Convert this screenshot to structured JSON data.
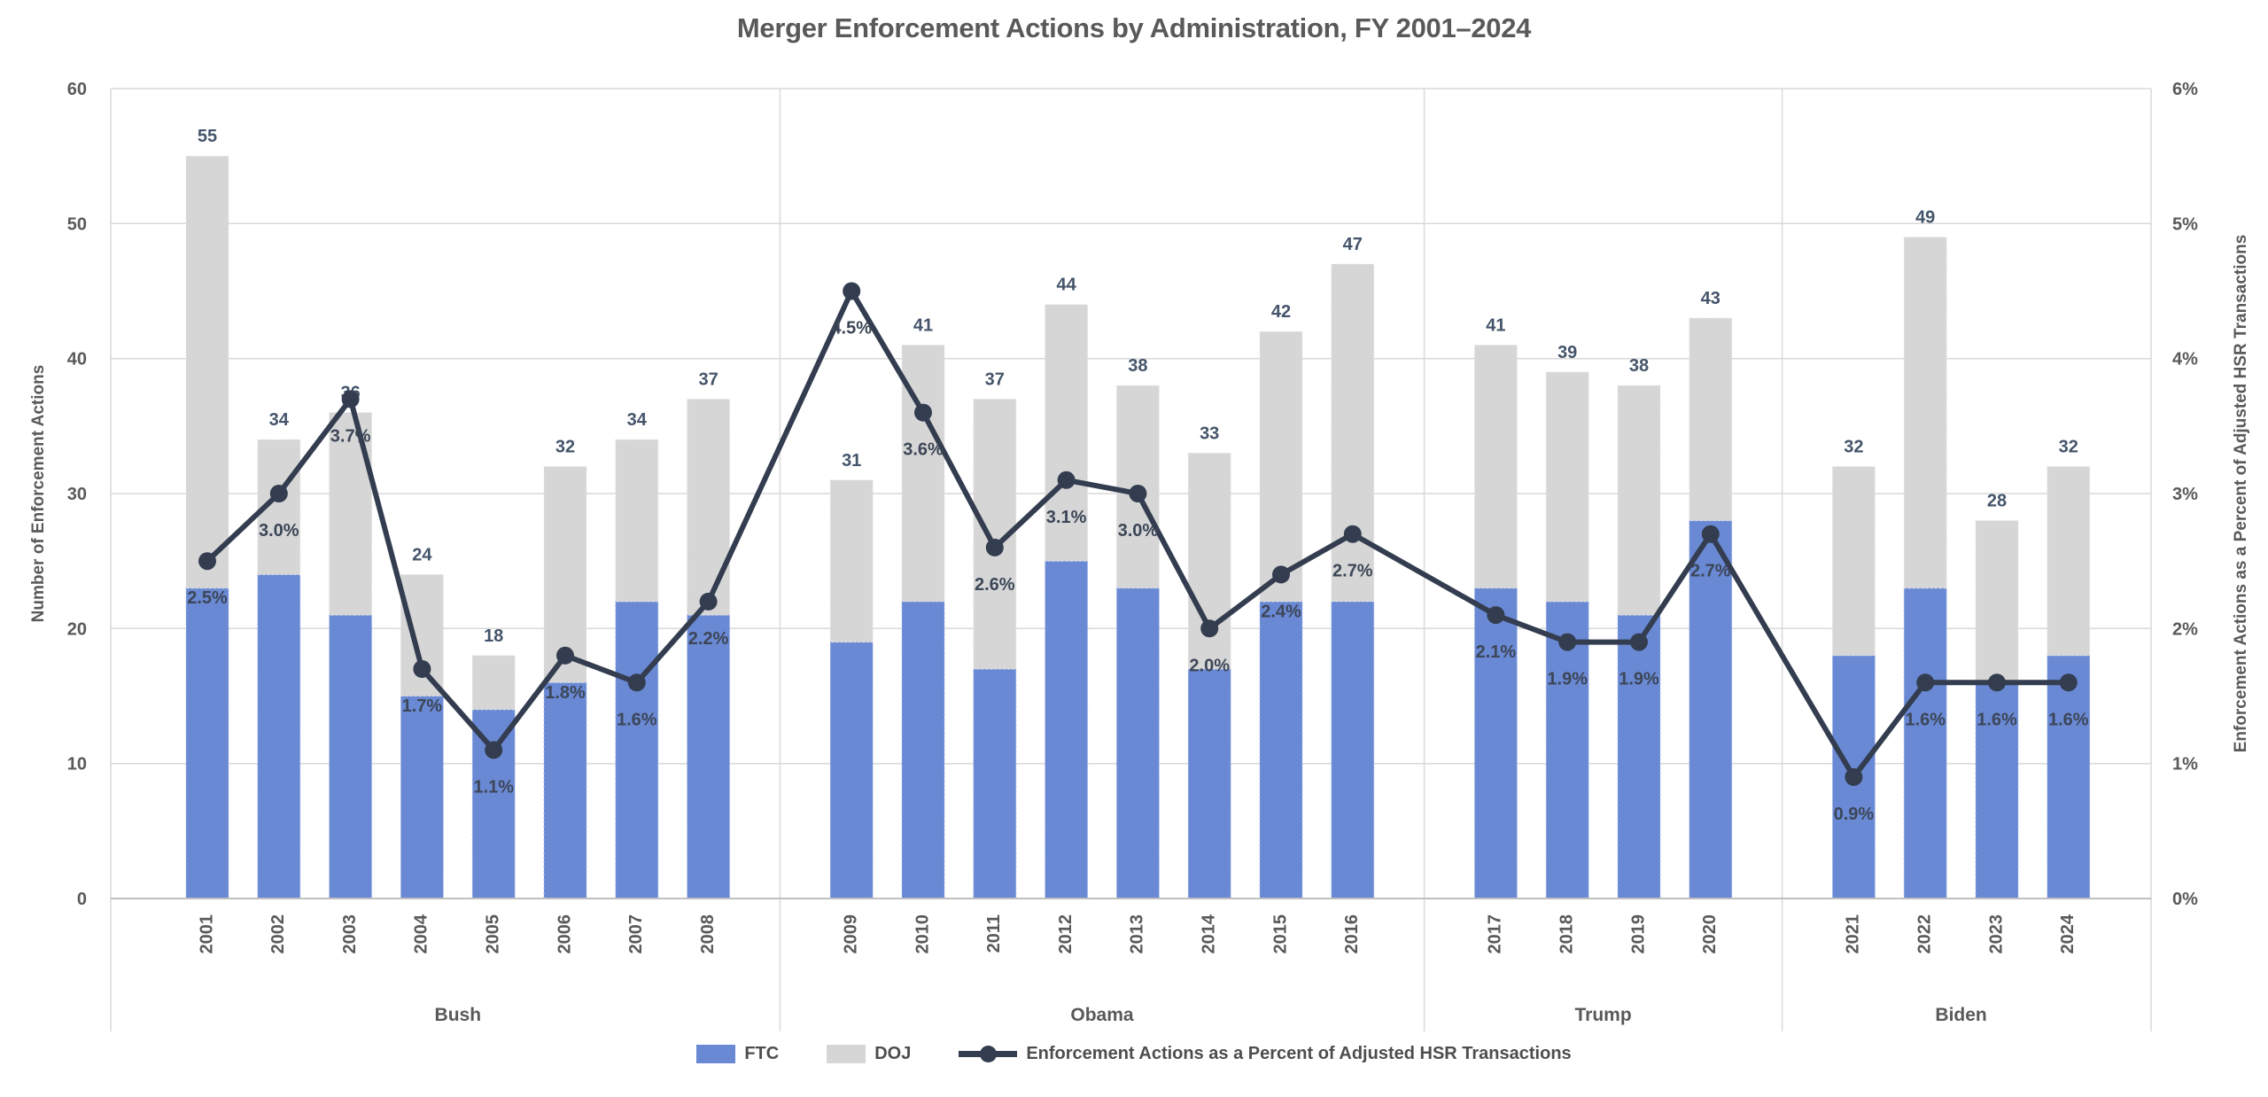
{
  "chart": {
    "title": "Merger Enforcement Actions by Administration, FY 2001–2024",
    "left_axis": {
      "title": "Number of Enforcement Actions",
      "ticks": [
        "60",
        "50",
        "40",
        "30",
        "20",
        "10",
        "0"
      ]
    },
    "right_axis": {
      "title": "Enforcement Actions as a Percent of Adjusted HSR Transactions",
      "ticks": [
        "6%",
        "5%",
        "4%",
        "3%",
        "2%",
        "1%",
        "0%"
      ]
    },
    "legend": {
      "ftc": "FTC",
      "doj": "DOJ",
      "line": "Enforcement Actions as a Percent of Adjusted HSR Transactions"
    },
    "colors": {
      "ftc_bar": "#6A89D4",
      "doj_bar": "#D6D6D6",
      "line": "#333D4F",
      "gridline": "#D9D9D9",
      "axis_line": "#BFBFBF",
      "axis_text": "#595959",
      "total_label": "#44546A",
      "pct_label": "#3C4657"
    }
  },
  "chart_data": {
    "type": "bar",
    "subtype": "stacked-bars-with-line",
    "title": "Merger Enforcement Actions by Administration, FY 2001–2024",
    "xlabel": "",
    "ylabel": "Number of Enforcement Actions",
    "y2label": "Enforcement Actions as a Percent of Adjusted HSR Transactions",
    "left_ylim": [
      0,
      60
    ],
    "right_ylim": [
      0,
      6
    ],
    "grid": true,
    "legend_position": "bottom",
    "categories": [
      "2001",
      "2002",
      "2003",
      "2004",
      "2005",
      "2006",
      "2007",
      "2008",
      "2009",
      "2010",
      "2011",
      "2012",
      "2013",
      "2014",
      "2015",
      "2016",
      "2017",
      "2018",
      "2019",
      "2020",
      "2021",
      "2022",
      "2023",
      "2024"
    ],
    "groups": [
      {
        "label": "Bush",
        "years": [
          "2001",
          "2002",
          "2003",
          "2004",
          "2005",
          "2006",
          "2007",
          "2008"
        ]
      },
      {
        "label": "Obama",
        "years": [
          "2009",
          "2010",
          "2011",
          "2012",
          "2013",
          "2014",
          "2015",
          "2016"
        ]
      },
      {
        "label": "Trump",
        "years": [
          "2017",
          "2018",
          "2019",
          "2020"
        ]
      },
      {
        "label": "Biden",
        "years": [
          "2021",
          "2022",
          "2023",
          "2024"
        ]
      }
    ],
    "series": [
      {
        "name": "FTC",
        "type": "bar",
        "stack": "actions",
        "values": [
          23,
          24,
          21,
          15,
          14,
          16,
          22,
          21,
          19,
          22,
          17,
          25,
          23,
          17,
          22,
          22,
          23,
          22,
          21,
          28,
          18,
          23,
          16,
          18
        ]
      },
      {
        "name": "DOJ",
        "type": "bar",
        "stack": "actions",
        "values": [
          32,
          10,
          15,
          9,
          4,
          16,
          12,
          16,
          12,
          19,
          20,
          19,
          15,
          16,
          20,
          25,
          18,
          17,
          17,
          15,
          14,
          26,
          12,
          14
        ]
      },
      {
        "name": "Enforcement Actions as a Percent of Adjusted HSR Transactions",
        "type": "line",
        "axis": "right",
        "values": [
          2.5,
          3.0,
          3.7,
          1.7,
          1.1,
          1.8,
          1.6,
          2.2,
          4.5,
          3.6,
          2.6,
          3.1,
          3.0,
          2.0,
          2.4,
          2.7,
          2.1,
          1.9,
          1.9,
          2.7,
          0.9,
          1.6,
          1.6,
          1.6
        ]
      }
    ],
    "totals": [
      55,
      34,
      36,
      24,
      18,
      32,
      34,
      37,
      31,
      41,
      37,
      44,
      38,
      33,
      42,
      47,
      41,
      39,
      38,
      43,
      32,
      49,
      28,
      32
    ]
  }
}
